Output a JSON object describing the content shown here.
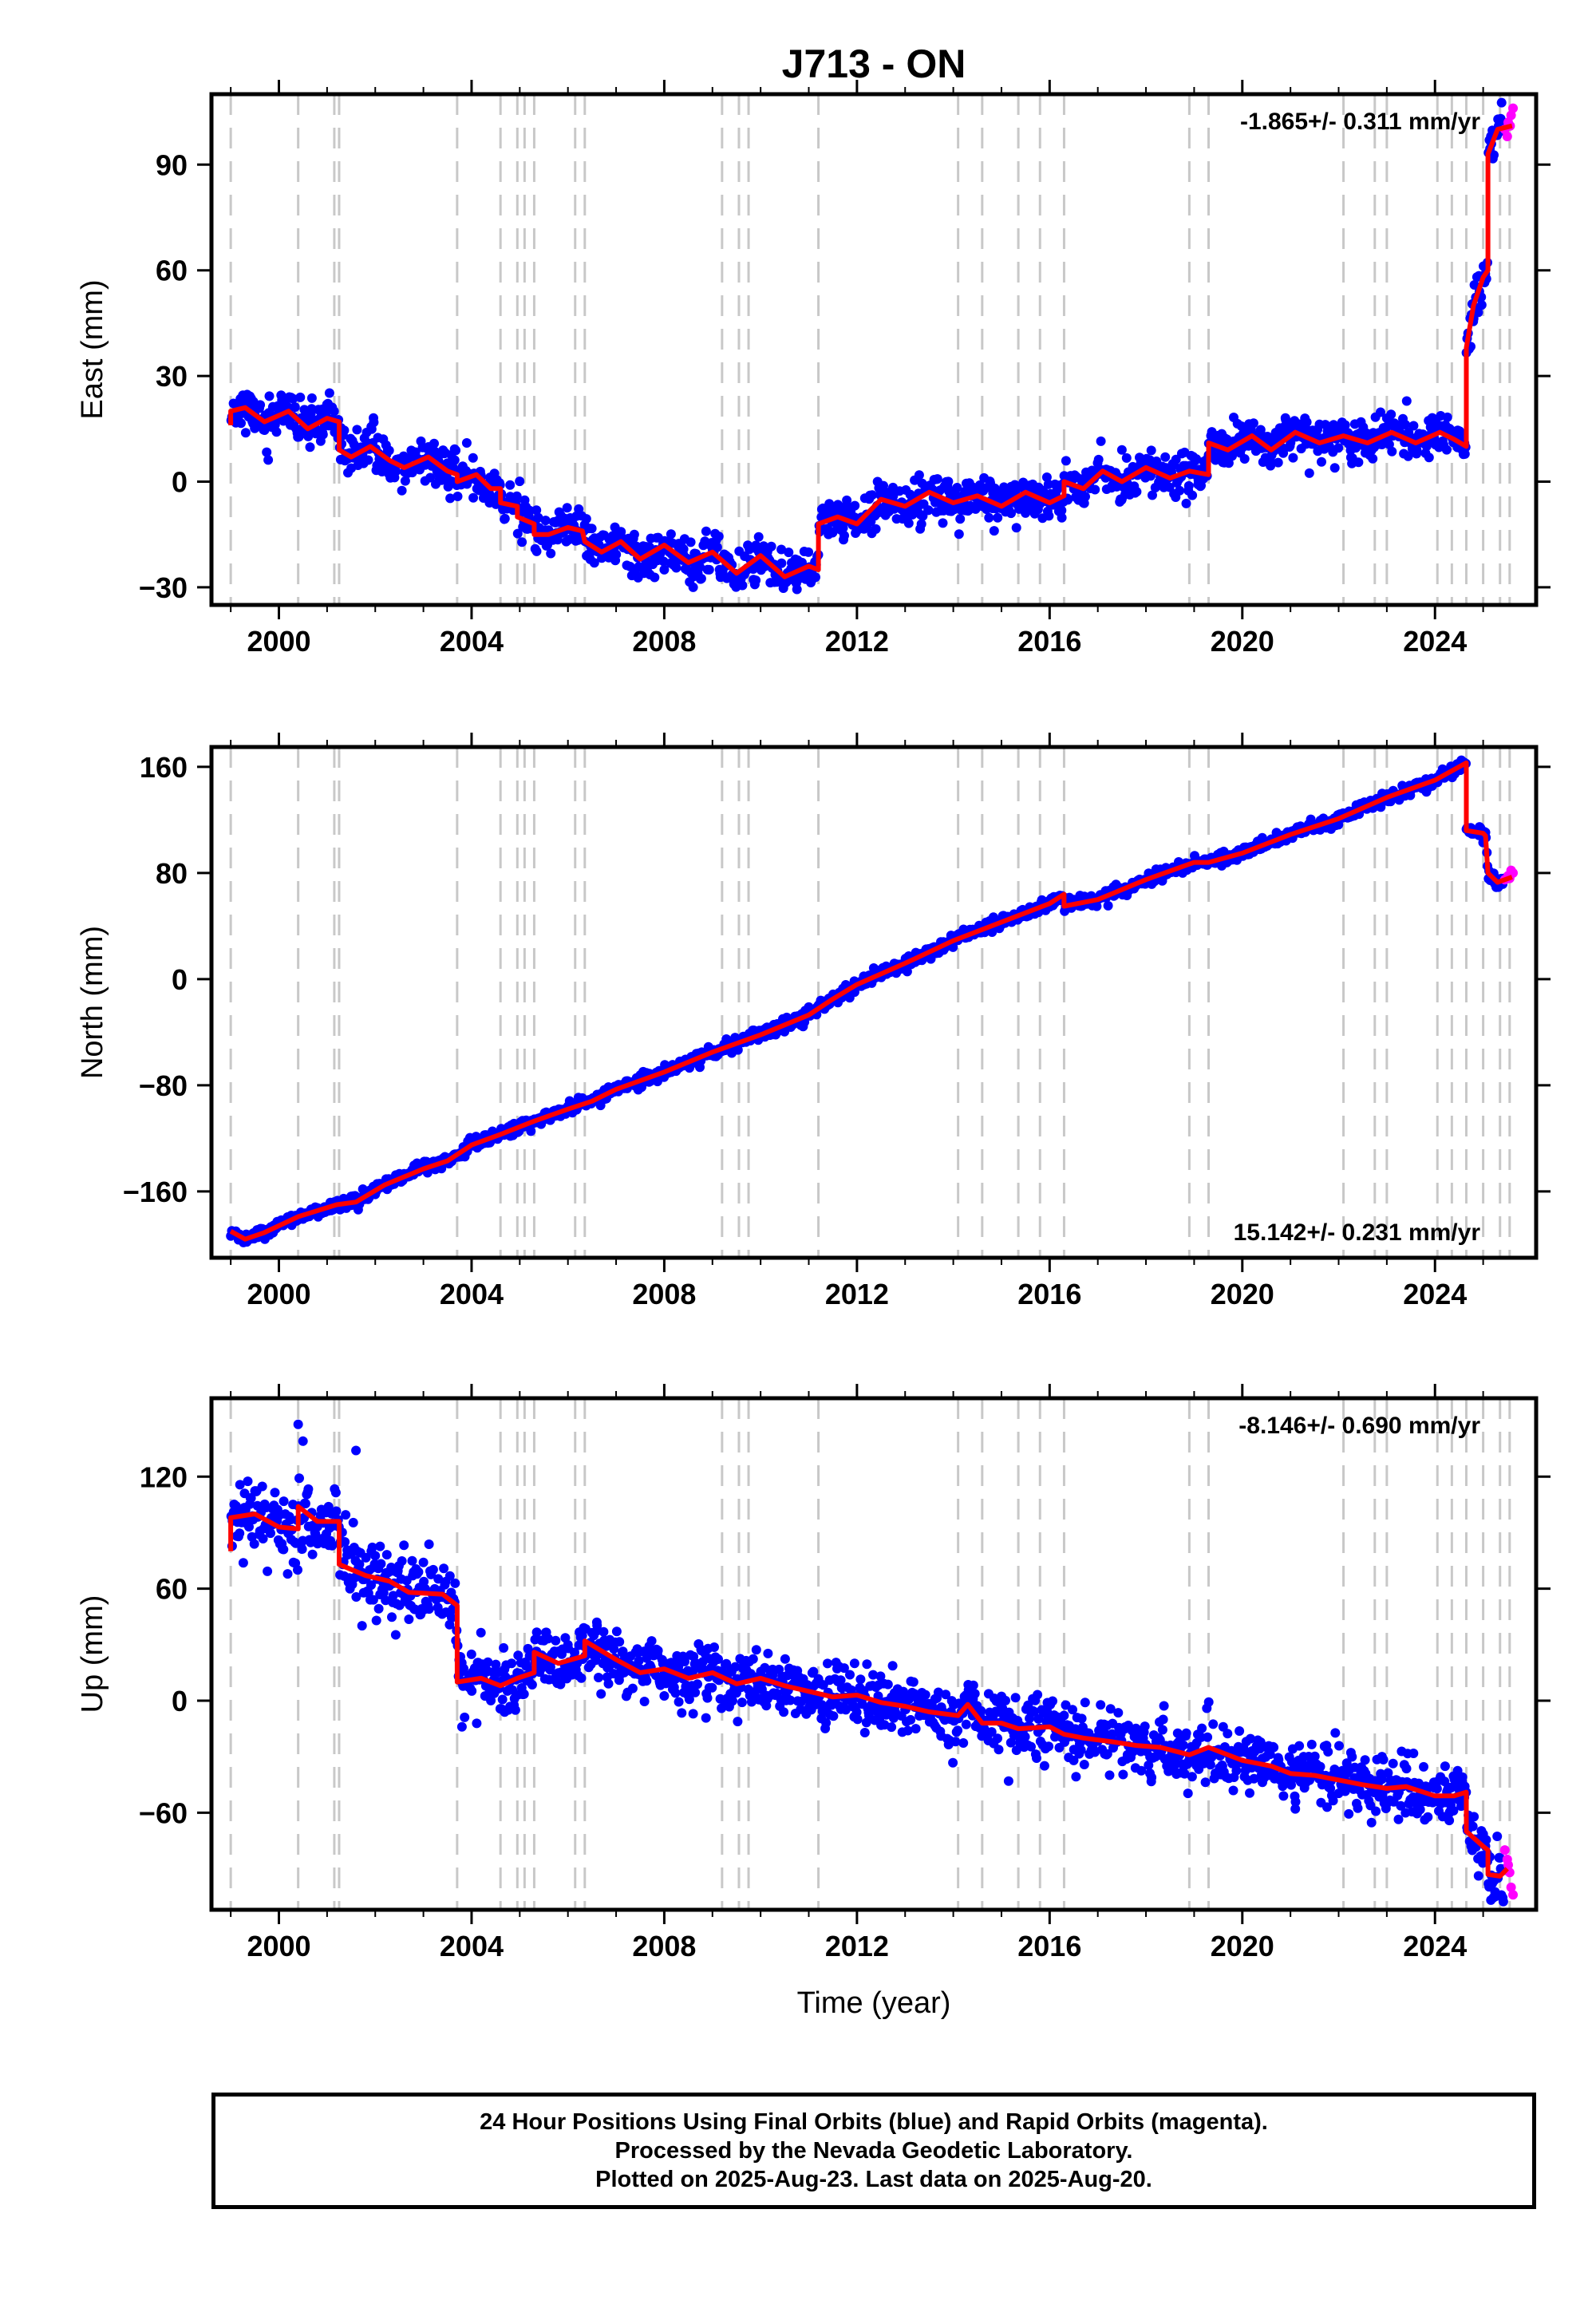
{
  "title": "J713 - ON",
  "x_axis_label": "Time (year)",
  "footer": {
    "line1": "24 Hour Positions Using Final Orbits (blue) and Rapid Orbits (magenta).",
    "line2": "Processed by the Nevada Geodetic Laboratory.",
    "line3": "Plotted on 2025-Aug-23. Last data on 2025-Aug-20."
  },
  "colors": {
    "final_orbits": "#0000ff",
    "rapid_orbits": "#ff00ff",
    "model": "#ff0000",
    "event_lines": "#c8c8c8"
  },
  "chart_data": [
    {
      "type": "scatter",
      "component": "east",
      "ylabel": "East (mm)",
      "rate_label": "-1.865+/- 0.311 mm/yr",
      "rate_position": "top-right",
      "xlim": [
        1998.6,
        2026.1
      ],
      "ylim": [
        -35,
        110
      ],
      "yticks": [
        -30,
        0,
        30,
        60,
        90
      ],
      "xticks": [
        2000,
        2004,
        2008,
        2012,
        2016,
        2020,
        2024
      ],
      "event_lines": [
        1999.0,
        2000.4,
        2001.15,
        2001.25,
        2003.7,
        2004.6,
        2004.95,
        2005.1,
        2005.3,
        2006.15,
        2006.35,
        2009.2,
        2009.55,
        2009.75,
        2011.2,
        2014.1,
        2014.6,
        2015.35,
        2015.8,
        2016.3,
        2018.9,
        2019.3,
        2022.1,
        2022.75,
        2023.0,
        2024.05,
        2024.35,
        2024.65,
        2025.0,
        2025.35,
        2025.55
      ],
      "model_path": [
        [
          1999.0,
          16
        ],
        [
          1999.0,
          20
        ],
        [
          1999.3,
          21
        ],
        [
          1999.7,
          17
        ],
        [
          2000.2,
          20
        ],
        [
          2000.6,
          15
        ],
        [
          2001.0,
          18
        ],
        [
          2001.25,
          17
        ],
        [
          2001.25,
          9
        ],
        [
          2001.5,
          7
        ],
        [
          2001.9,
          10
        ],
        [
          2002.3,
          6
        ],
        [
          2002.6,
          4
        ],
        [
          2003.1,
          7
        ],
        [
          2003.5,
          3
        ],
        [
          2003.7,
          2
        ],
        [
          2003.7,
          0
        ],
        [
          2004.1,
          2
        ],
        [
          2004.4,
          -2
        ],
        [
          2004.6,
          -2
        ],
        [
          2004.6,
          -6
        ],
        [
          2004.95,
          -7
        ],
        [
          2004.95,
          -10
        ],
        [
          2005.3,
          -12
        ],
        [
          2005.3,
          -15
        ],
        [
          2005.6,
          -15
        ],
        [
          2006.0,
          -13
        ],
        [
          2006.3,
          -14
        ],
        [
          2006.35,
          -17
        ],
        [
          2006.7,
          -20
        ],
        [
          2007.1,
          -17
        ],
        [
          2007.5,
          -22
        ],
        [
          2008.0,
          -18
        ],
        [
          2008.5,
          -23
        ],
        [
          2009.0,
          -20
        ],
        [
          2009.5,
          -26
        ],
        [
          2010.0,
          -21
        ],
        [
          2010.5,
          -27
        ],
        [
          2011.0,
          -24
        ],
        [
          2011.2,
          -25
        ],
        [
          2011.2,
          -12
        ],
        [
          2011.6,
          -10
        ],
        [
          2012.0,
          -12
        ],
        [
          2012.5,
          -5
        ],
        [
          2013.0,
          -7
        ],
        [
          2013.5,
          -3
        ],
        [
          2014.0,
          -6
        ],
        [
          2014.5,
          -4
        ],
        [
          2015.0,
          -7
        ],
        [
          2015.5,
          -3
        ],
        [
          2016.0,
          -6
        ],
        [
          2016.3,
          -4
        ],
        [
          2016.3,
          0
        ],
        [
          2016.7,
          -2
        ],
        [
          2017.1,
          3
        ],
        [
          2017.5,
          0
        ],
        [
          2018.0,
          4
        ],
        [
          2018.5,
          1
        ],
        [
          2018.9,
          3
        ],
        [
          2019.3,
          2
        ],
        [
          2019.3,
          11
        ],
        [
          2019.7,
          9
        ],
        [
          2020.2,
          13
        ],
        [
          2020.6,
          9
        ],
        [
          2021.1,
          14
        ],
        [
          2021.6,
          11
        ],
        [
          2022.1,
          13
        ],
        [
          2022.6,
          11
        ],
        [
          2023.1,
          14
        ],
        [
          2023.6,
          11
        ],
        [
          2024.1,
          14
        ],
        [
          2024.4,
          12
        ],
        [
          2024.65,
          10
        ],
        [
          2024.65,
          38
        ],
        [
          2024.8,
          50
        ],
        [
          2025.0,
          58
        ],
        [
          2025.1,
          60
        ],
        [
          2025.1,
          93
        ],
        [
          2025.3,
          100
        ],
        [
          2025.6,
          101
        ]
      ],
      "points": {
        "seed": 11,
        "per_year": 60,
        "scatter_sd": 3.0,
        "outliers": [
          [
            2003.9,
            11
          ],
          [
            2008.0,
            -25
          ],
          [
            2008.6,
            -30
          ],
          [
            2009.9,
            -28
          ],
          [
            2015.6,
            -8
          ],
          [
            2017.5,
            9
          ],
          [
            2021.3,
            18
          ],
          [
            2023.0,
            18
          ]
        ]
      },
      "rapid_points": [
        [
          2025.45,
          100
        ],
        [
          2025.52,
          102
        ],
        [
          2025.58,
          104
        ],
        [
          2025.62,
          106
        ],
        [
          2025.5,
          98
        ],
        [
          2025.56,
          101
        ]
      ]
    },
    {
      "type": "scatter",
      "component": "north",
      "ylabel": "North (mm)",
      "rate_label": "15.142+/- 0.231 mm/yr",
      "rate_position": "bottom-right",
      "xlim": [
        1998.6,
        2026.1
      ],
      "ylim": [
        -210,
        175
      ],
      "yticks": [
        -160,
        -80,
        0,
        80,
        160
      ],
      "xticks": [
        2000,
        2004,
        2008,
        2012,
        2016,
        2020,
        2024
      ],
      "event_lines": [
        1999.0,
        2000.4,
        2001.15,
        2001.25,
        2003.7,
        2004.6,
        2004.95,
        2005.1,
        2005.3,
        2006.15,
        2006.35,
        2009.2,
        2009.55,
        2009.75,
        2011.2,
        2014.1,
        2014.6,
        2015.35,
        2015.8,
        2016.3,
        2018.9,
        2019.3,
        2022.1,
        2022.75,
        2023.0,
        2024.05,
        2024.35,
        2024.65,
        2025.0,
        2025.35,
        2025.55
      ],
      "model_path": [
        [
          1999.0,
          -190
        ],
        [
          1999.3,
          -196
        ],
        [
          1999.7,
          -191
        ],
        [
          2000.4,
          -179
        ],
        [
          2001.2,
          -170
        ],
        [
          2001.6,
          -168
        ],
        [
          2002.2,
          -155
        ],
        [
          2003.0,
          -143
        ],
        [
          2003.5,
          -137
        ],
        [
          2004.0,
          -125
        ],
        [
          2004.6,
          -117
        ],
        [
          2005.3,
          -107
        ],
        [
          2006.0,
          -98
        ],
        [
          2006.5,
          -92
        ],
        [
          2007.0,
          -83
        ],
        [
          2008.0,
          -70
        ],
        [
          2009.0,
          -55
        ],
        [
          2010.0,
          -42
        ],
        [
          2011.0,
          -27
        ],
        [
          2011.5,
          -15
        ],
        [
          2012.0,
          -4
        ],
        [
          2013.0,
          12
        ],
        [
          2014.0,
          29
        ],
        [
          2015.0,
          43
        ],
        [
          2016.0,
          57
        ],
        [
          2016.3,
          64
        ],
        [
          2016.3,
          55
        ],
        [
          2017.0,
          60
        ],
        [
          2018.0,
          75
        ],
        [
          2019.0,
          88
        ],
        [
          2019.3,
          88
        ],
        [
          2020.0,
          95
        ],
        [
          2021.0,
          109
        ],
        [
          2022.0,
          121
        ],
        [
          2023.0,
          137
        ],
        [
          2024.0,
          150
        ],
        [
          2024.5,
          160
        ],
        [
          2024.65,
          163
        ],
        [
          2024.65,
          112
        ],
        [
          2025.0,
          110
        ],
        [
          2025.05,
          108
        ],
        [
          2025.1,
          80
        ],
        [
          2025.3,
          73
        ],
        [
          2025.6,
          77
        ]
      ],
      "points": {
        "seed": 23,
        "per_year": 60,
        "scatter_sd": 2.3,
        "outliers": []
      },
      "rapid_points": [
        [
          2025.45,
          75
        ],
        [
          2025.52,
          78
        ],
        [
          2025.58,
          82
        ],
        [
          2025.62,
          80
        ],
        [
          2025.55,
          76
        ]
      ]
    },
    {
      "type": "scatter",
      "component": "up",
      "ylabel": "Up (mm)",
      "rate_label": "-8.146+/- 0.690 mm/yr",
      "rate_position": "top-right",
      "xlim": [
        1998.6,
        2026.1
      ],
      "ylim": [
        -112,
        162
      ],
      "yticks": [
        -60,
        0,
        60,
        120
      ],
      "xticks": [
        2000,
        2004,
        2008,
        2012,
        2016,
        2020,
        2024
      ],
      "event_lines": [
        1999.0,
        2000.4,
        2001.15,
        2001.25,
        2003.7,
        2004.6,
        2004.95,
        2005.1,
        2005.3,
        2006.15,
        2006.35,
        2009.2,
        2009.55,
        2009.75,
        2011.2,
        2014.1,
        2014.6,
        2015.35,
        2015.8,
        2016.3,
        2018.9,
        2019.3,
        2022.1,
        2022.75,
        2023.0,
        2024.05,
        2024.35,
        2024.65,
        2025.0,
        2025.35,
        2025.55
      ],
      "model_path": [
        [
          1999.0,
          80
        ],
        [
          1999.0,
          98
        ],
        [
          1999.5,
          100
        ],
        [
          2000.0,
          93
        ],
        [
          2000.4,
          92
        ],
        [
          2000.4,
          104
        ],
        [
          2000.8,
          96
        ],
        [
          2001.25,
          96
        ],
        [
          2001.25,
          73
        ],
        [
          2001.8,
          67
        ],
        [
          2002.3,
          64
        ],
        [
          2002.7,
          58
        ],
        [
          2003.4,
          57
        ],
        [
          2003.7,
          51
        ],
        [
          2003.7,
          10
        ],
        [
          2004.2,
          12
        ],
        [
          2004.6,
          8
        ],
        [
          2004.95,
          12
        ],
        [
          2005.3,
          15
        ],
        [
          2005.3,
          26
        ],
        [
          2005.8,
          20
        ],
        [
          2006.35,
          24
        ],
        [
          2006.35,
          32
        ],
        [
          2007.0,
          22
        ],
        [
          2007.5,
          15
        ],
        [
          2008.0,
          17
        ],
        [
          2008.5,
          12
        ],
        [
          2009.0,
          15
        ],
        [
          2009.5,
          9
        ],
        [
          2010.0,
          12
        ],
        [
          2010.5,
          8
        ],
        [
          2011.0,
          5
        ],
        [
          2011.5,
          2
        ],
        [
          2012.0,
          3
        ],
        [
          2012.5,
          -1
        ],
        [
          2013.0,
          -3
        ],
        [
          2013.5,
          -6
        ],
        [
          2014.1,
          -8
        ],
        [
          2014.3,
          -2
        ],
        [
          2014.6,
          -12
        ],
        [
          2015.0,
          -12
        ],
        [
          2015.35,
          -15
        ],
        [
          2016.0,
          -14
        ],
        [
          2016.3,
          -18
        ],
        [
          2016.7,
          -20
        ],
        [
          2017.3,
          -22
        ],
        [
          2017.8,
          -24
        ],
        [
          2018.3,
          -25
        ],
        [
          2018.9,
          -29
        ],
        [
          2019.3,
          -25
        ],
        [
          2019.6,
          -28
        ],
        [
          2020.0,
          -32
        ],
        [
          2020.6,
          -35
        ],
        [
          2021.0,
          -39
        ],
        [
          2021.5,
          -40
        ],
        [
          2022.1,
          -43
        ],
        [
          2022.5,
          -45
        ],
        [
          2023.0,
          -47
        ],
        [
          2023.4,
          -46
        ],
        [
          2024.0,
          -51
        ],
        [
          2024.4,
          -51
        ],
        [
          2024.65,
          -49
        ],
        [
          2024.65,
          -70
        ],
        [
          2025.0,
          -78
        ],
        [
          2025.1,
          -80
        ],
        [
          2025.1,
          -93
        ],
        [
          2025.35,
          -94
        ],
        [
          2025.5,
          -90
        ]
      ],
      "points": {
        "seed": 37,
        "per_year": 60,
        "scatter_sd": 8.0,
        "outliers": [
          [
            2000.4,
            148
          ],
          [
            2000.5,
            139
          ],
          [
            2001.6,
            134
          ],
          [
            2003.8,
            -14
          ],
          [
            2006.6,
            42
          ],
          [
            2007.8,
            25
          ],
          [
            2008.6,
            -7
          ],
          [
            2014.4,
            -8
          ],
          [
            2016.5,
            -32
          ],
          [
            2021.1,
            -58
          ],
          [
            2022.9,
            -30
          ],
          [
            2024.3,
            -60
          ]
        ]
      },
      "rapid_points": [
        [
          2025.45,
          -80
        ],
        [
          2025.5,
          -85
        ],
        [
          2025.55,
          -92
        ],
        [
          2025.58,
          -100
        ],
        [
          2025.62,
          -104
        ],
        [
          2025.52,
          -88
        ]
      ]
    }
  ]
}
